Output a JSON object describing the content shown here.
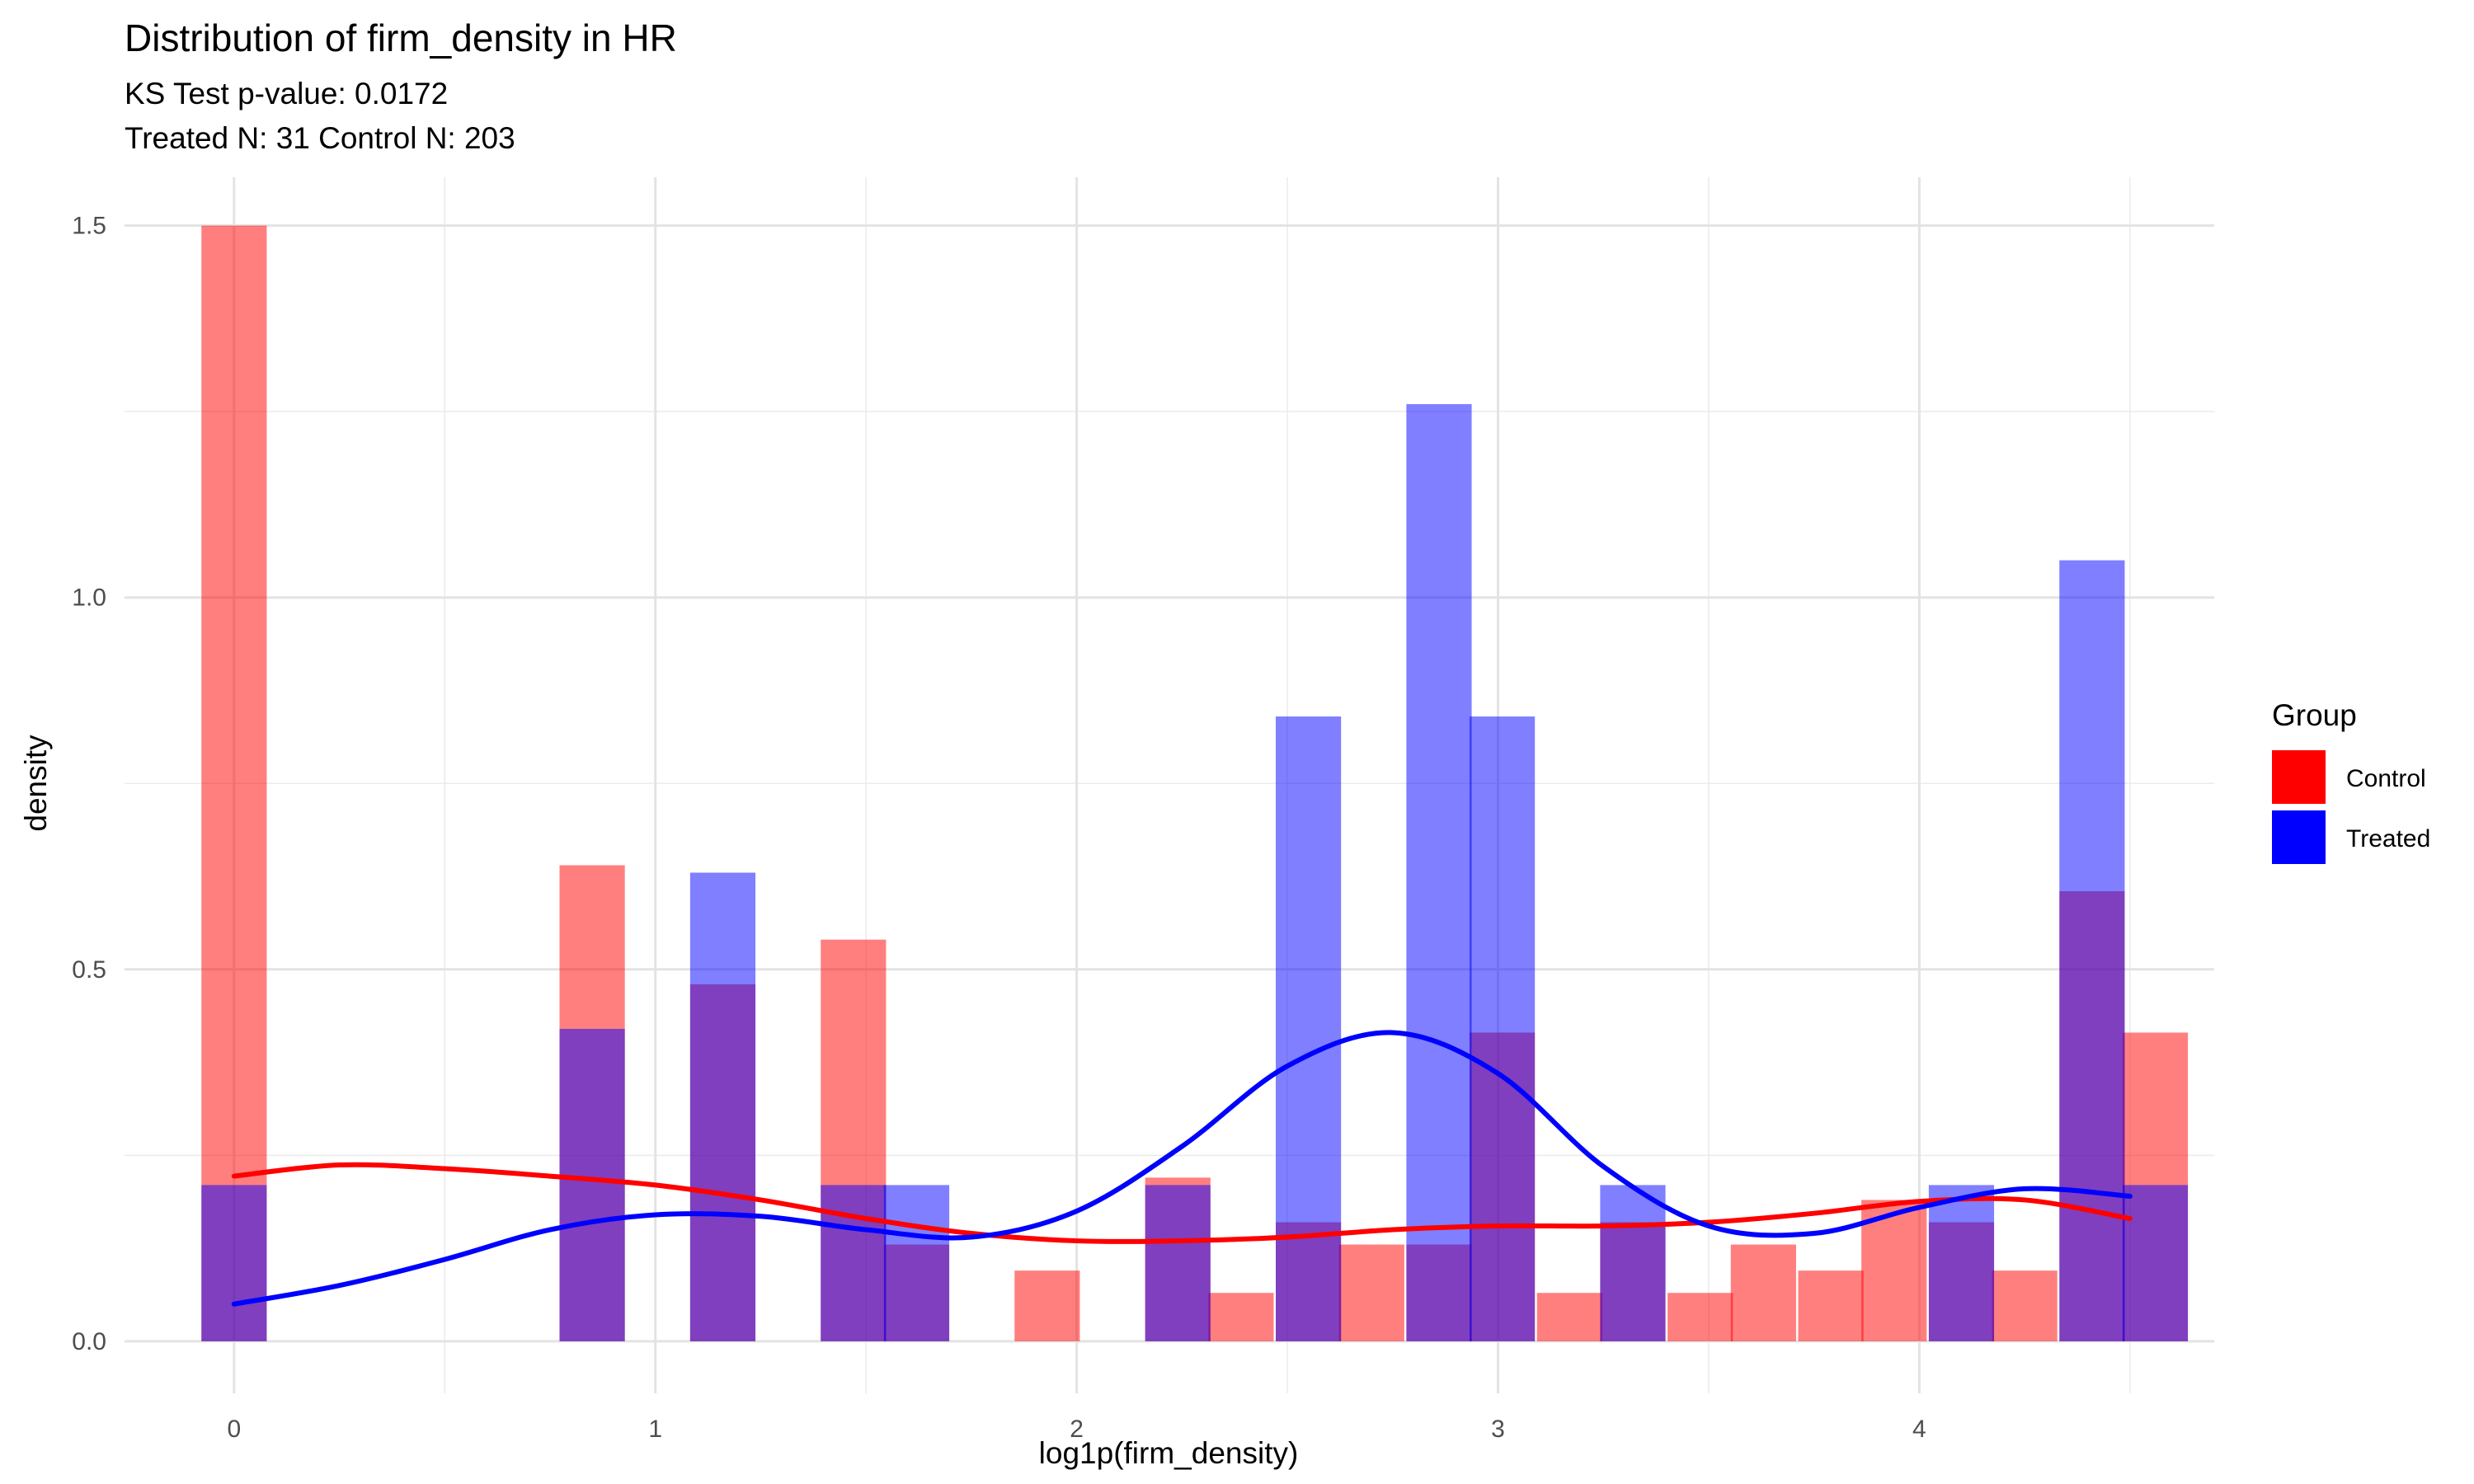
{
  "chart_data": {
    "type": "histogram",
    "title": "Distribution of firm_density in HR",
    "subtitle_lines": [
      "KS Test p-value: 0.0172",
      "Treated N: 31 Control N: 203"
    ],
    "xlabel": "log1p(firm_density)",
    "ylabel": "density",
    "xlim": [
      -0.26,
      4.7
    ],
    "ylim": [
      -0.07,
      1.565
    ],
    "x_ticks": [
      0,
      1,
      2,
      3,
      4
    ],
    "x_tick_labels": [
      "0",
      "1",
      "2",
      "3",
      "4"
    ],
    "y_ticks": [
      0.0,
      0.5,
      1.0,
      1.5
    ],
    "y_tick_labels": [
      "0.0",
      "0.5",
      "1.0",
      "1.5"
    ],
    "grid": true,
    "bin_width": 0.155,
    "legend": {
      "title": "Group",
      "position": "right",
      "entries": [
        {
          "label": "Control",
          "color": "#ff0000"
        },
        {
          "label": "Treated",
          "color": "#0000ff"
        }
      ]
    },
    "series": [
      {
        "name": "Control",
        "color": "#ff0000",
        "bins": [
          {
            "x": 0.0,
            "density": 1.5
          },
          {
            "x": 0.85,
            "density": 0.64
          },
          {
            "x": 1.16,
            "density": 0.48
          },
          {
            "x": 1.47,
            "density": 0.54
          },
          {
            "x": 1.62,
            "density": 0.13
          },
          {
            "x": 1.93,
            "density": 0.095
          },
          {
            "x": 2.24,
            "density": 0.22
          },
          {
            "x": 2.39,
            "density": 0.065
          },
          {
            "x": 2.55,
            "density": 0.16
          },
          {
            "x": 2.7,
            "density": 0.13
          },
          {
            "x": 2.86,
            "density": 0.13
          },
          {
            "x": 3.01,
            "density": 0.415
          },
          {
            "x": 3.17,
            "density": 0.065
          },
          {
            "x": 3.32,
            "density": 0.16
          },
          {
            "x": 3.48,
            "density": 0.065
          },
          {
            "x": 3.63,
            "density": 0.13
          },
          {
            "x": 3.79,
            "density": 0.095
          },
          {
            "x": 3.94,
            "density": 0.19
          },
          {
            "x": 4.1,
            "density": 0.16
          },
          {
            "x": 4.25,
            "density": 0.095
          },
          {
            "x": 4.41,
            "density": 0.605
          },
          {
            "x": 4.56,
            "density": 0.415
          }
        ],
        "density_curve": {
          "x": [
            0.0,
            0.25,
            0.5,
            0.75,
            1.0,
            1.25,
            1.5,
            1.75,
            2.0,
            2.25,
            2.5,
            2.75,
            3.0,
            3.25,
            3.5,
            3.75,
            4.0,
            4.25,
            4.5
          ],
          "y": [
            0.222,
            0.237,
            0.232,
            0.222,
            0.21,
            0.19,
            0.165,
            0.145,
            0.135,
            0.135,
            0.14,
            0.15,
            0.155,
            0.155,
            0.16,
            0.172,
            0.188,
            0.19,
            0.165
          ]
        }
      },
      {
        "name": "Treated",
        "color": "#0000ff",
        "bins": [
          {
            "x": 0.0,
            "density": 0.21
          },
          {
            "x": 0.85,
            "density": 0.42
          },
          {
            "x": 1.16,
            "density": 0.63
          },
          {
            "x": 1.47,
            "density": 0.21
          },
          {
            "x": 1.62,
            "density": 0.21
          },
          {
            "x": 2.24,
            "density": 0.21
          },
          {
            "x": 2.55,
            "density": 0.84
          },
          {
            "x": 2.86,
            "density": 1.26
          },
          {
            "x": 3.01,
            "density": 0.84
          },
          {
            "x": 3.32,
            "density": 0.21
          },
          {
            "x": 4.1,
            "density": 0.21
          },
          {
            "x": 4.41,
            "density": 1.05
          },
          {
            "x": 4.56,
            "density": 0.21
          }
        ],
        "density_curve": {
          "x": [
            0.0,
            0.25,
            0.5,
            0.75,
            1.0,
            1.25,
            1.5,
            1.75,
            2.0,
            2.25,
            2.5,
            2.75,
            3.0,
            3.25,
            3.5,
            3.75,
            4.0,
            4.25,
            4.5
          ],
          "y": [
            0.05,
            0.075,
            0.11,
            0.15,
            0.17,
            0.168,
            0.15,
            0.14,
            0.175,
            0.262,
            0.37,
            0.415,
            0.36,
            0.235,
            0.155,
            0.145,
            0.18,
            0.205,
            0.195
          ]
        }
      }
    ]
  }
}
